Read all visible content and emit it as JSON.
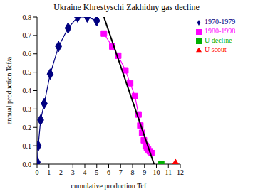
{
  "chart_data": {
    "type": "scatter",
    "title": "Ukraine Khrestyschi Zakhidny gas decline",
    "x_label": "cumulative production Tcf",
    "y_label": "annual production Tcf/a",
    "xlim": [
      0,
      12
    ],
    "xticks": [
      0,
      1,
      2,
      3,
      4,
      5,
      6,
      7,
      8,
      9,
      10,
      11,
      12
    ],
    "ylim": [
      0,
      0.8
    ],
    "yticks": [
      {
        "value": 0,
        "label": "0.0"
      },
      0.1,
      0.2,
      0.3,
      0.4,
      0.5,
      0.6,
      0.7,
      0.8
    ],
    "grid": false,
    "legend": "top right",
    "series": [
      {
        "name": "1970-1979",
        "color": "#000080",
        "marker": "diamond",
        "line_style": "solid",
        "x": [
          0.02,
          0.1,
          0.3,
          0.6,
          1.1,
          1.8,
          2.6,
          3.4,
          4.2,
          5.0
        ],
        "values": [
          0.01,
          0.1,
          0.24,
          0.33,
          0.49,
          0.64,
          0.74,
          0.8,
          0.8,
          0.78
        ]
      },
      {
        "name": "1980-1998",
        "color": "#ff00ff",
        "marker": "square",
        "line_style": "solid",
        "x": [
          5.6,
          6.3,
          6.8,
          7.4,
          7.8,
          8.2,
          8.5,
          8.65,
          8.8,
          8.95,
          9.1,
          9.2,
          9.3,
          9.45,
          9.6
        ],
        "values": [
          0.71,
          0.64,
          0.59,
          0.51,
          0.44,
          0.37,
          0.27,
          0.21,
          0.17,
          0.13,
          0.1,
          0.09,
          0.08,
          0.07,
          0.06
        ]
      },
      {
        "name": "U scout",
        "color": "#ff0000",
        "marker": "triangle",
        "line_style": "none",
        "x": [
          11.6
        ],
        "values": [
          0
        ]
      },
      {
        "name": "U decline",
        "color": "#00b000",
        "marker": "square",
        "line_style": "none",
        "x": [
          10.4
        ],
        "values": [
          0
        ]
      },
      {
        "color": "#000000",
        "marker": "none",
        "line_style": "solid",
        "x": [
          5.6,
          9.8
        ],
        "values": [
          0.8,
          0
        ]
      }
    ]
  }
}
